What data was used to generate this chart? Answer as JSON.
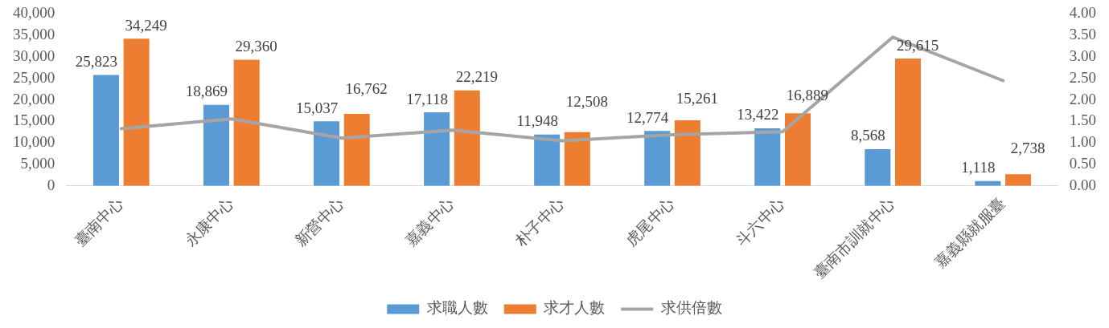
{
  "chart_data": {
    "type": "bar",
    "categories": [
      "臺南中心",
      "永康中心",
      "新營中心",
      "嘉義中心",
      "朴子中心",
      "虎尾中心",
      "斗六中心",
      "臺南市訓就中心",
      "嘉義縣就服臺"
    ],
    "series": [
      {
        "name": "求職人數",
        "color": "#5b9bd5",
        "values": [
          25823,
          18869,
          15037,
          17118,
          11948,
          12774,
          13422,
          8568,
          1118
        ],
        "value_labels": [
          "25,823",
          "18,869",
          "15,037",
          "17,118",
          "11,948",
          "12,774",
          "13,422",
          "8,568",
          "1,118"
        ]
      },
      {
        "name": "求才人數",
        "color": "#ed7d31",
        "values": [
          34249,
          29360,
          16762,
          22219,
          12508,
          15261,
          16889,
          29615,
          2738
        ],
        "value_labels": [
          "34,249",
          "29,360",
          "16,762",
          "22,219",
          "12,508",
          "15,261",
          "16,889",
          "29,615",
          "2,738"
        ]
      },
      {
        "name": "求供倍數",
        "type": "line",
        "axis": "y2",
        "color": "#a5a5a5",
        "values": [
          1.33,
          1.56,
          1.11,
          1.3,
          1.05,
          1.19,
          1.26,
          3.46,
          2.45
        ]
      }
    ],
    "ylim": [
      0,
      40000
    ],
    "yticks": [
      {
        "value": 0,
        "label": "0"
      },
      {
        "value": 5000,
        "label": "5,000"
      },
      {
        "value": 10000,
        "label": "10,000"
      },
      {
        "value": 15000,
        "label": "15,000"
      },
      {
        "value": 20000,
        "label": "20,000"
      },
      {
        "value": 25000,
        "label": "25,000"
      },
      {
        "value": 30000,
        "label": "30,000"
      },
      {
        "value": 35000,
        "label": "35,000"
      },
      {
        "value": 40000,
        "label": "40,000"
      }
    ],
    "y2lim": [
      0,
      4
    ],
    "y2ticks": [
      {
        "value": 0,
        "label": "0.00"
      },
      {
        "value": 0.5,
        "label": "0.50"
      },
      {
        "value": 1,
        "label": "1.00"
      },
      {
        "value": 1.5,
        "label": "1.50"
      },
      {
        "value": 2,
        "label": "2.00"
      },
      {
        "value": 2.5,
        "label": "2.50"
      },
      {
        "value": 3,
        "label": "3.00"
      },
      {
        "value": 3.5,
        "label": "3.50"
      },
      {
        "value": 4,
        "label": "4.00"
      }
    ],
    "grid": false,
    "legend": "bottom",
    "marker": "none",
    "line_style": "solid"
  }
}
